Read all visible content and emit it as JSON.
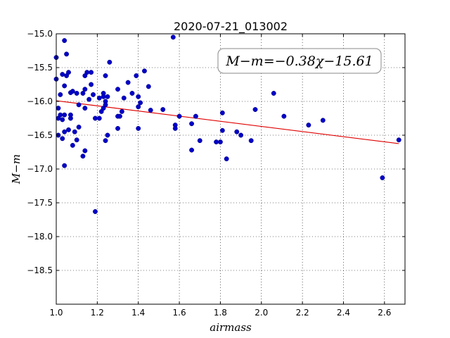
{
  "chart_data": {
    "type": "scatter",
    "title": "2020-07-21_013002",
    "xlabel": "airmass",
    "ylabel": "M−m",
    "xlim": [
      1.0,
      2.7
    ],
    "ylim": [
      -19.0,
      -15.0
    ],
    "y_inverted": true,
    "grid": true,
    "grid_style": "dotted",
    "x_ticks": [
      1.0,
      1.2,
      1.4,
      1.6,
      1.8,
      2.0,
      2.2,
      2.4,
      2.6
    ],
    "x_tick_labels": [
      "1.0",
      "1.2",
      "1.4",
      "1.6",
      "1.8",
      "2.0",
      "2.2",
      "2.4",
      "2.6"
    ],
    "y_ticks": [
      -15.0,
      -15.5,
      -16.0,
      -16.5,
      -17.0,
      -17.5,
      -18.0,
      -18.5
    ],
    "y_tick_labels": [
      "−15.0",
      "−15.5",
      "−16.0",
      "−16.5",
      "−17.0",
      "−17.5",
      "−18.0",
      "−18.5"
    ],
    "annotation": "M−m=−0.38χ−15.61",
    "annotation_position": "top-right",
    "fit": {
      "slope": -0.38,
      "intercept": -15.61,
      "x_range": [
        1.0,
        2.67
      ],
      "color": "#e00000"
    },
    "marker_color": "#0000c8",
    "series": [
      {
        "points": [
          [
            1.0,
            -15.35
          ],
          [
            1.0,
            -15.67
          ],
          [
            1.01,
            -16.1
          ],
          [
            1.01,
            -16.25
          ],
          [
            1.01,
            -16.5
          ],
          [
            1.02,
            -15.9
          ],
          [
            1.02,
            -16.2
          ],
          [
            1.03,
            -15.6
          ],
          [
            1.03,
            -16.27
          ],
          [
            1.03,
            -16.55
          ],
          [
            1.04,
            -16.45
          ],
          [
            1.04,
            -16.2
          ],
          [
            1.04,
            -16.95
          ],
          [
            1.04,
            -15.77
          ],
          [
            1.04,
            -15.1
          ],
          [
            1.05,
            -15.3
          ],
          [
            1.05,
            -15.62
          ],
          [
            1.06,
            -15.57
          ],
          [
            1.06,
            -16.42
          ],
          [
            1.07,
            -16.25
          ],
          [
            1.07,
            -16.2
          ],
          [
            1.07,
            -15.87
          ],
          [
            1.08,
            -15.85
          ],
          [
            1.08,
            -16.65
          ],
          [
            1.09,
            -16.45
          ],
          [
            1.1,
            -16.57
          ],
          [
            1.1,
            -15.88
          ],
          [
            1.11,
            -16.05
          ],
          [
            1.11,
            -16.38
          ],
          [
            1.13,
            -15.88
          ],
          [
            1.13,
            -16.81
          ],
          [
            1.14,
            -15.62
          ],
          [
            1.14,
            -15.82
          ],
          [
            1.14,
            -16.1
          ],
          [
            1.14,
            -16.73
          ],
          [
            1.15,
            -15.57
          ],
          [
            1.16,
            -15.97
          ],
          [
            1.17,
            -15.57
          ],
          [
            1.17,
            -15.75
          ],
          [
            1.18,
            -15.9
          ],
          [
            1.19,
            -16.25
          ],
          [
            1.19,
            -17.63
          ],
          [
            1.21,
            -15.95
          ],
          [
            1.21,
            -16.25
          ],
          [
            1.22,
            -16.15
          ],
          [
            1.23,
            -15.88
          ],
          [
            1.23,
            -15.93
          ],
          [
            1.23,
            -16.1
          ],
          [
            1.24,
            -16.0
          ],
          [
            1.24,
            -16.05
          ],
          [
            1.24,
            -16.58
          ],
          [
            1.24,
            -15.62
          ],
          [
            1.25,
            -15.93
          ],
          [
            1.25,
            -16.5
          ],
          [
            1.26,
            -15.42
          ],
          [
            1.3,
            -16.22
          ],
          [
            1.3,
            -16.4
          ],
          [
            1.3,
            -15.82
          ],
          [
            1.31,
            -16.22
          ],
          [
            1.32,
            -16.15
          ],
          [
            1.33,
            -15.95
          ],
          [
            1.35,
            -15.72
          ],
          [
            1.37,
            -15.88
          ],
          [
            1.39,
            -15.62
          ],
          [
            1.4,
            -15.93
          ],
          [
            1.4,
            -16.08
          ],
          [
            1.4,
            -16.4
          ],
          [
            1.41,
            -16.02
          ],
          [
            1.43,
            -15.55
          ],
          [
            1.45,
            -15.78
          ],
          [
            1.46,
            -16.13
          ],
          [
            1.52,
            -16.12
          ],
          [
            1.57,
            -15.05
          ],
          [
            1.58,
            -16.35
          ],
          [
            1.58,
            -16.4
          ],
          [
            1.6,
            -16.22
          ],
          [
            1.66,
            -16.72
          ],
          [
            1.66,
            -16.33
          ],
          [
            1.68,
            -16.22
          ],
          [
            1.7,
            -16.58
          ],
          [
            1.78,
            -16.6
          ],
          [
            1.8,
            -16.6
          ],
          [
            1.81,
            -16.17
          ],
          [
            1.81,
            -16.43
          ],
          [
            1.83,
            -16.85
          ],
          [
            1.88,
            -16.45
          ],
          [
            1.9,
            -16.5
          ],
          [
            1.95,
            -16.58
          ],
          [
            1.97,
            -16.12
          ],
          [
            2.06,
            -15.88
          ],
          [
            2.11,
            -16.22
          ],
          [
            2.23,
            -16.35
          ],
          [
            2.3,
            -16.28
          ],
          [
            2.59,
            -17.13
          ],
          [
            2.67,
            -16.57
          ]
        ]
      }
    ]
  }
}
